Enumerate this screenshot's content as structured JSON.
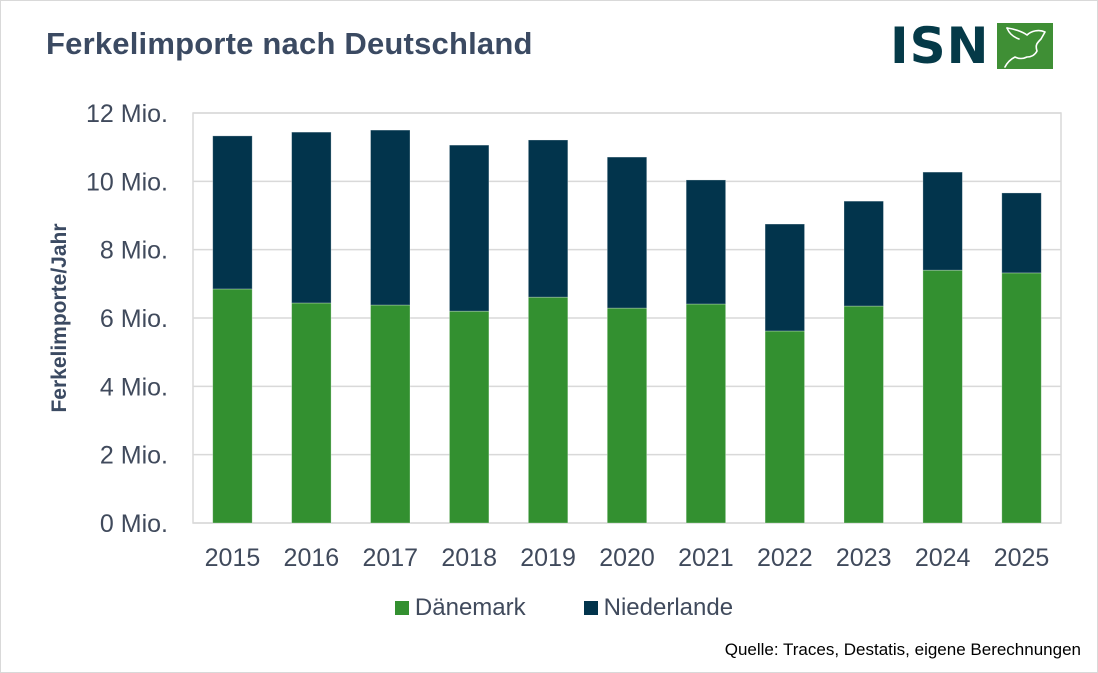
{
  "title": "Ferkelimporte nach Deutschland",
  "logo": {
    "text": "ISN",
    "icon": "pig-head-icon",
    "colors": {
      "text": "#053a48",
      "box": "#3f8f35"
    }
  },
  "source": "Quelle: Traces, Destatis, eigene Berechnungen",
  "colors": {
    "daenemark": "#339030",
    "niederlande": "#02344c",
    "grid": "#d9d9d9",
    "axis_text": "#404a5c"
  },
  "chart_data": {
    "type": "bar",
    "stacked": true,
    "title": "Ferkelimporte nach Deutschland",
    "xlabel": "",
    "ylabel": "Ferkelimporte/Jahr",
    "ylim": [
      0,
      12
    ],
    "yticks": [
      0,
      2,
      4,
      6,
      8,
      10,
      12
    ],
    "ytick_labels": [
      "0 Mio.",
      "2 Mio.",
      "4 Mio.",
      "6 Mio.",
      "8 Mio.",
      "10 Mio.",
      "12 Mio."
    ],
    "y_unit": "Mio.",
    "grid": true,
    "legend_position": "bottom",
    "categories": [
      "2015",
      "2016",
      "2017",
      "2018",
      "2019",
      "2020",
      "2021",
      "2022",
      "2023",
      "2024",
      "2025"
    ],
    "series": [
      {
        "name": "Dänemark",
        "color": "#339030",
        "values": [
          6.85,
          6.44,
          6.38,
          6.2,
          6.61,
          6.29,
          6.41,
          5.62,
          6.35,
          7.4,
          7.32
        ]
      },
      {
        "name": "Niederlande",
        "color": "#02344c",
        "values": [
          4.48,
          5.0,
          5.12,
          4.86,
          4.6,
          4.42,
          3.63,
          3.13,
          3.07,
          2.87,
          2.34
        ]
      }
    ]
  }
}
